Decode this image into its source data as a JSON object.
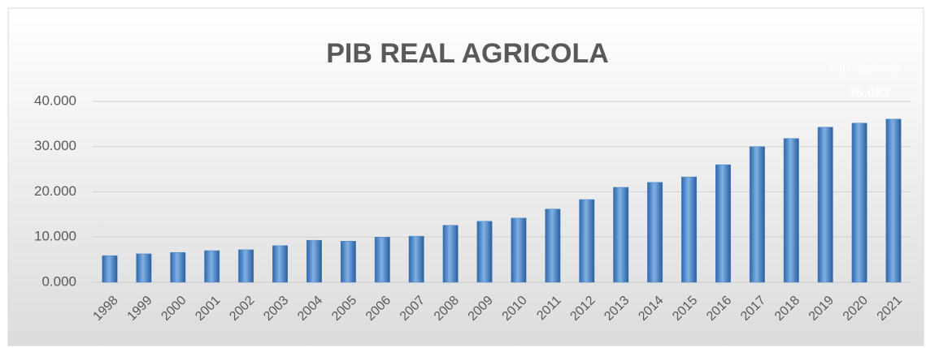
{
  "chart_data": {
    "type": "bar",
    "title": "PIB REAL AGRICOLA",
    "categories": [
      "1998",
      "1999",
      "2000",
      "2001",
      "2002",
      "2003",
      "2004",
      "2005",
      "2006",
      "2007",
      "2008",
      "2009",
      "2010",
      "2011",
      "2012",
      "2013",
      "2014",
      "2015",
      "2016",
      "2017",
      "2018",
      "2019",
      "2020",
      "2021"
    ],
    "series": [
      {
        "name": "PIB Agricola",
        "color": "#4a86c8",
        "values": [
          5900,
          6300,
          6600,
          7000,
          7200,
          8100,
          9300,
          9100,
          10000,
          10200,
          12600,
          13500,
          14200,
          16200,
          18300,
          21000,
          22100,
          23300,
          26000,
          30000,
          31800,
          34300,
          35200,
          36082
        ],
        "value_labels": [
          null,
          null,
          null,
          null,
          null,
          null,
          null,
          null,
          null,
          null,
          null,
          null,
          null,
          null,
          null,
          null,
          null,
          null,
          null,
          null,
          null,
          null,
          null,
          "36.082"
        ]
      }
    ],
    "ylim": [
      0,
      40000
    ],
    "yticks": [
      {
        "value": 0,
        "label": "0.000"
      },
      {
        "value": 10000,
        "label": "10.000"
      },
      {
        "value": 20000,
        "label": "20.000"
      },
      {
        "value": 30000,
        "label": "30.000"
      },
      {
        "value": 40000,
        "label": "40.000"
      }
    ],
    "grid": true
  }
}
